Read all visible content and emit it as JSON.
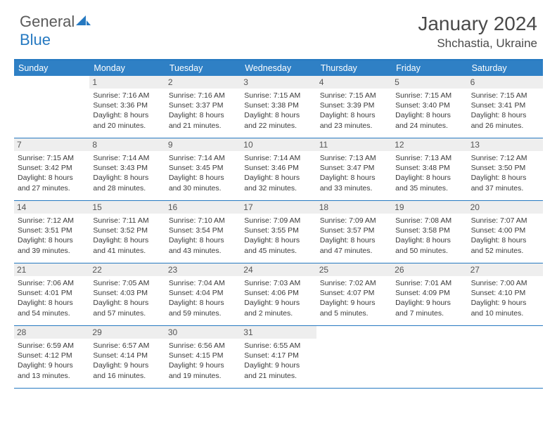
{
  "logo": {
    "text_general": "General",
    "text_blue": "Blue"
  },
  "title": {
    "month": "January 2024",
    "location": "Shchastia, Ukraine"
  },
  "dayheaders": [
    "Sunday",
    "Monday",
    "Tuesday",
    "Wednesday",
    "Thursday",
    "Friday",
    "Saturday"
  ],
  "colors": {
    "header_bg": "#2f80c5",
    "header_border": "#2679c1",
    "daynum_bg": "#eeeeee",
    "text": "#3a3a3a"
  },
  "weeks": [
    [
      {
        "num": "",
        "sunrise": "",
        "sunset": "",
        "daylight": ""
      },
      {
        "num": "1",
        "sunrise": "Sunrise: 7:16 AM",
        "sunset": "Sunset: 3:36 PM",
        "daylight": "Daylight: 8 hours and 20 minutes."
      },
      {
        "num": "2",
        "sunrise": "Sunrise: 7:16 AM",
        "sunset": "Sunset: 3:37 PM",
        "daylight": "Daylight: 8 hours and 21 minutes."
      },
      {
        "num": "3",
        "sunrise": "Sunrise: 7:15 AM",
        "sunset": "Sunset: 3:38 PM",
        "daylight": "Daylight: 8 hours and 22 minutes."
      },
      {
        "num": "4",
        "sunrise": "Sunrise: 7:15 AM",
        "sunset": "Sunset: 3:39 PM",
        "daylight": "Daylight: 8 hours and 23 minutes."
      },
      {
        "num": "5",
        "sunrise": "Sunrise: 7:15 AM",
        "sunset": "Sunset: 3:40 PM",
        "daylight": "Daylight: 8 hours and 24 minutes."
      },
      {
        "num": "6",
        "sunrise": "Sunrise: 7:15 AM",
        "sunset": "Sunset: 3:41 PM",
        "daylight": "Daylight: 8 hours and 26 minutes."
      }
    ],
    [
      {
        "num": "7",
        "sunrise": "Sunrise: 7:15 AM",
        "sunset": "Sunset: 3:42 PM",
        "daylight": "Daylight: 8 hours and 27 minutes."
      },
      {
        "num": "8",
        "sunrise": "Sunrise: 7:14 AM",
        "sunset": "Sunset: 3:43 PM",
        "daylight": "Daylight: 8 hours and 28 minutes."
      },
      {
        "num": "9",
        "sunrise": "Sunrise: 7:14 AM",
        "sunset": "Sunset: 3:45 PM",
        "daylight": "Daylight: 8 hours and 30 minutes."
      },
      {
        "num": "10",
        "sunrise": "Sunrise: 7:14 AM",
        "sunset": "Sunset: 3:46 PM",
        "daylight": "Daylight: 8 hours and 32 minutes."
      },
      {
        "num": "11",
        "sunrise": "Sunrise: 7:13 AM",
        "sunset": "Sunset: 3:47 PM",
        "daylight": "Daylight: 8 hours and 33 minutes."
      },
      {
        "num": "12",
        "sunrise": "Sunrise: 7:13 AM",
        "sunset": "Sunset: 3:48 PM",
        "daylight": "Daylight: 8 hours and 35 minutes."
      },
      {
        "num": "13",
        "sunrise": "Sunrise: 7:12 AM",
        "sunset": "Sunset: 3:50 PM",
        "daylight": "Daylight: 8 hours and 37 minutes."
      }
    ],
    [
      {
        "num": "14",
        "sunrise": "Sunrise: 7:12 AM",
        "sunset": "Sunset: 3:51 PM",
        "daylight": "Daylight: 8 hours and 39 minutes."
      },
      {
        "num": "15",
        "sunrise": "Sunrise: 7:11 AM",
        "sunset": "Sunset: 3:52 PM",
        "daylight": "Daylight: 8 hours and 41 minutes."
      },
      {
        "num": "16",
        "sunrise": "Sunrise: 7:10 AM",
        "sunset": "Sunset: 3:54 PM",
        "daylight": "Daylight: 8 hours and 43 minutes."
      },
      {
        "num": "17",
        "sunrise": "Sunrise: 7:09 AM",
        "sunset": "Sunset: 3:55 PM",
        "daylight": "Daylight: 8 hours and 45 minutes."
      },
      {
        "num": "18",
        "sunrise": "Sunrise: 7:09 AM",
        "sunset": "Sunset: 3:57 PM",
        "daylight": "Daylight: 8 hours and 47 minutes."
      },
      {
        "num": "19",
        "sunrise": "Sunrise: 7:08 AM",
        "sunset": "Sunset: 3:58 PM",
        "daylight": "Daylight: 8 hours and 50 minutes."
      },
      {
        "num": "20",
        "sunrise": "Sunrise: 7:07 AM",
        "sunset": "Sunset: 4:00 PM",
        "daylight": "Daylight: 8 hours and 52 minutes."
      }
    ],
    [
      {
        "num": "21",
        "sunrise": "Sunrise: 7:06 AM",
        "sunset": "Sunset: 4:01 PM",
        "daylight": "Daylight: 8 hours and 54 minutes."
      },
      {
        "num": "22",
        "sunrise": "Sunrise: 7:05 AM",
        "sunset": "Sunset: 4:03 PM",
        "daylight": "Daylight: 8 hours and 57 minutes."
      },
      {
        "num": "23",
        "sunrise": "Sunrise: 7:04 AM",
        "sunset": "Sunset: 4:04 PM",
        "daylight": "Daylight: 8 hours and 59 minutes."
      },
      {
        "num": "24",
        "sunrise": "Sunrise: 7:03 AM",
        "sunset": "Sunset: 4:06 PM",
        "daylight": "Daylight: 9 hours and 2 minutes."
      },
      {
        "num": "25",
        "sunrise": "Sunrise: 7:02 AM",
        "sunset": "Sunset: 4:07 PM",
        "daylight": "Daylight: 9 hours and 5 minutes."
      },
      {
        "num": "26",
        "sunrise": "Sunrise: 7:01 AM",
        "sunset": "Sunset: 4:09 PM",
        "daylight": "Daylight: 9 hours and 7 minutes."
      },
      {
        "num": "27",
        "sunrise": "Sunrise: 7:00 AM",
        "sunset": "Sunset: 4:10 PM",
        "daylight": "Daylight: 9 hours and 10 minutes."
      }
    ],
    [
      {
        "num": "28",
        "sunrise": "Sunrise: 6:59 AM",
        "sunset": "Sunset: 4:12 PM",
        "daylight": "Daylight: 9 hours and 13 minutes."
      },
      {
        "num": "29",
        "sunrise": "Sunrise: 6:57 AM",
        "sunset": "Sunset: 4:14 PM",
        "daylight": "Daylight: 9 hours and 16 minutes."
      },
      {
        "num": "30",
        "sunrise": "Sunrise: 6:56 AM",
        "sunset": "Sunset: 4:15 PM",
        "daylight": "Daylight: 9 hours and 19 minutes."
      },
      {
        "num": "31",
        "sunrise": "Sunrise: 6:55 AM",
        "sunset": "Sunset: 4:17 PM",
        "daylight": "Daylight: 9 hours and 21 minutes."
      },
      {
        "num": "",
        "sunrise": "",
        "sunset": "",
        "daylight": ""
      },
      {
        "num": "",
        "sunrise": "",
        "sunset": "",
        "daylight": ""
      },
      {
        "num": "",
        "sunrise": "",
        "sunset": "",
        "daylight": ""
      }
    ]
  ]
}
